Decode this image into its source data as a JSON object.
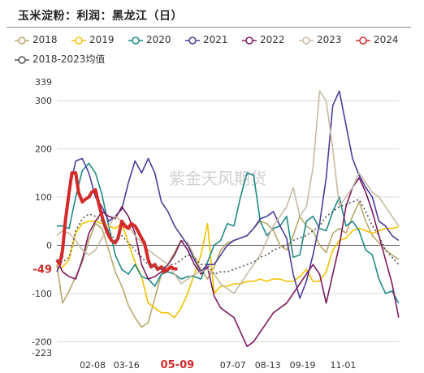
{
  "title": "玉米淀粉：利润：黑龙江（日）",
  "watermark": "紫金天风期货",
  "colors": {
    "2018": "#b9a86a",
    "2019": "#f2c200",
    "2020": "#1e8a86",
    "2021": "#4b3d9a",
    "2022": "#7b1a5e",
    "2023": "#c8bba2",
    "2024": "#d42a2a",
    "2018-2023均值": "#555555"
  },
  "chart_data": {
    "type": "line",
    "title": "玉米淀粉：利润：黑龙江（日）",
    "xlabel": "",
    "ylabel": "",
    "ylim": [
      -223,
      339
    ],
    "xlim": [
      1,
      365
    ],
    "y_ticks": [
      339,
      300,
      200,
      100,
      0,
      -100,
      -200,
      -223
    ],
    "x_ticks": [
      {
        "label": "02-08",
        "day": 39
      },
      {
        "label": "03-16",
        "day": 75
      },
      {
        "label": "05-09",
        "day": 129
      },
      {
        "label": "07-07",
        "day": 188
      },
      {
        "label": "08-13",
        "day": 225
      },
      {
        "label": "09-19",
        "day": 262
      },
      {
        "label": "11-01",
        "day": 305
      }
    ],
    "highlight_x_label": "05-09",
    "last_value_label": "-49",
    "legend_position": "top",
    "grid": true,
    "series": [
      {
        "name": "2018",
        "x": [
          1,
          7,
          14,
          21,
          28,
          35,
          42,
          49,
          56,
          63,
          70,
          77,
          84,
          91,
          98,
          105,
          112,
          119,
          126,
          133,
          140,
          147,
          154,
          161,
          168,
          175,
          182,
          189,
          196,
          203,
          210,
          217,
          224,
          231,
          238,
          245,
          252,
          259,
          266,
          273,
          280,
          287,
          294,
          301,
          308,
          315,
          322,
          329,
          336,
          343,
          350,
          357,
          364
        ],
        "y": [
          -40,
          -120,
          -95,
          -65,
          -35,
          10,
          45,
          35,
          -10,
          -55,
          -85,
          -125,
          -150,
          -170,
          -160,
          -110,
          -60,
          -40,
          -15,
          10,
          5,
          -25,
          -50,
          -70,
          -45,
          -10,
          5,
          10,
          15,
          20,
          35,
          50,
          45,
          30,
          0,
          -10,
          20,
          60,
          40,
          30,
          0,
          -15,
          25,
          35,
          25,
          60,
          90,
          50,
          20,
          5,
          -10,
          -20,
          -30
        ]
      },
      {
        "name": "2019",
        "x": [
          1,
          7,
          14,
          21,
          28,
          35,
          42,
          49,
          56,
          63,
          70,
          77,
          84,
          91,
          98,
          105,
          112,
          119,
          126,
          133,
          140,
          147,
          154,
          161,
          168,
          175,
          182,
          189,
          196,
          203,
          210,
          217,
          224,
          231,
          238,
          245,
          252,
          259,
          266,
          273,
          280,
          287,
          294,
          301,
          308,
          315,
          322,
          329,
          336,
          343,
          350,
          357,
          364
        ],
        "y": [
          -50,
          -45,
          -30,
          25,
          45,
          50,
          50,
          45,
          40,
          35,
          45,
          5,
          -35,
          -65,
          -120,
          -130,
          -140,
          -140,
          -150,
          -130,
          -100,
          -60,
          -20,
          45,
          -100,
          -85,
          -85,
          -80,
          -80,
          -75,
          -75,
          -70,
          -75,
          -70,
          -70,
          -75,
          -75,
          -65,
          -50,
          -75,
          -75,
          -55,
          -10,
          10,
          15,
          30,
          35,
          30,
          25,
          30,
          35,
          35,
          38
        ]
      },
      {
        "name": "2020",
        "x": [
          1,
          7,
          14,
          21,
          28,
          35,
          42,
          49,
          56,
          63,
          70,
          77,
          84,
          91,
          98,
          105,
          112,
          119,
          126,
          133,
          140,
          147,
          154,
          161,
          168,
          175,
          182,
          189,
          196,
          203,
          210,
          217,
          224,
          231,
          238,
          245,
          252,
          259,
          266,
          273,
          280,
          287,
          294,
          301,
          308,
          315,
          322,
          329,
          336,
          343,
          350,
          357,
          364
        ],
        "y": [
          40,
          40,
          35,
          100,
          155,
          170,
          150,
          105,
          40,
          -20,
          -50,
          -60,
          -40,
          -65,
          -70,
          -85,
          -60,
          -55,
          -60,
          -70,
          -65,
          -65,
          -70,
          -35,
          0,
          10,
          45,
          40,
          100,
          150,
          145,
          50,
          20,
          35,
          40,
          60,
          -25,
          -20,
          50,
          60,
          35,
          30,
          70,
          100,
          40,
          50,
          30,
          -10,
          -20,
          -70,
          -100,
          -95,
          -120
        ]
      },
      {
        "name": "2021",
        "x": [
          1,
          7,
          14,
          21,
          28,
          35,
          42,
          49,
          56,
          63,
          70,
          77,
          84,
          91,
          98,
          105,
          112,
          119,
          126,
          133,
          140,
          147,
          154,
          161,
          168,
          175,
          182,
          189,
          196,
          203,
          210,
          217,
          224,
          231,
          238,
          245,
          252,
          259,
          266,
          273,
          280,
          287,
          294,
          301,
          308,
          315,
          322,
          329,
          336,
          343,
          350,
          357,
          364
        ],
        "y": [
          -55,
          -25,
          110,
          175,
          180,
          150,
          100,
          80,
          50,
          60,
          75,
          130,
          175,
          150,
          180,
          150,
          90,
          70,
          40,
          20,
          0,
          -30,
          -55,
          -40,
          -40,
          -20,
          0,
          10,
          15,
          20,
          35,
          55,
          60,
          70,
          40,
          15,
          -60,
          -110,
          -75,
          -20,
          45,
          140,
          290,
          320,
          250,
          180,
          145,
          120,
          100,
          50,
          40,
          20,
          10
        ]
      },
      {
        "name": "2022",
        "x": [
          1,
          7,
          14,
          21,
          28,
          35,
          42,
          49,
          56,
          63,
          70,
          77,
          84,
          91,
          98,
          105,
          112,
          119,
          126,
          133,
          140,
          147,
          154,
          161,
          168,
          175,
          182,
          189,
          196,
          203,
          210,
          217,
          224,
          231,
          238,
          245,
          252,
          259,
          266,
          273,
          280,
          287,
          294,
          301,
          308,
          315,
          322,
          329,
          336,
          343,
          350,
          357,
          364
        ],
        "y": [
          -30,
          -55,
          -65,
          -70,
          -30,
          25,
          50,
          70,
          60,
          55,
          80,
          60,
          25,
          -40,
          -70,
          -65,
          -55,
          -40,
          -20,
          10,
          -10,
          -40,
          -60,
          -45,
          -105,
          -130,
          -140,
          -150,
          -180,
          -210,
          -200,
          -180,
          -160,
          -140,
          -130,
          -120,
          -100,
          -80,
          -60,
          -40,
          -60,
          -120,
          -60,
          0,
          80,
          120,
          140,
          110,
          70,
          20,
          -30,
          -80,
          -150
        ]
      },
      {
        "name": "2023",
        "x": [
          1,
          7,
          14,
          21,
          28,
          35,
          42,
          49,
          56,
          63,
          70,
          77,
          84,
          91,
          98,
          105,
          112,
          119,
          126,
          133,
          140,
          147,
          154,
          161,
          168,
          175,
          182,
          189,
          196,
          203,
          210,
          217,
          224,
          231,
          238,
          245,
          252,
          259,
          266,
          273,
          280,
          287,
          294,
          301,
          308,
          315,
          322,
          329,
          336,
          343,
          350,
          357,
          364
        ],
        "y": [
          20,
          30,
          25,
          10,
          -10,
          -20,
          -10,
          15,
          40,
          60,
          50,
          40,
          20,
          5,
          -10,
          -20,
          -30,
          -40,
          -60,
          -80,
          -70,
          -60,
          -55,
          -50,
          -60,
          -80,
          -90,
          -100,
          -80,
          -60,
          -40,
          -20,
          10,
          40,
          60,
          80,
          120,
          60,
          80,
          160,
          320,
          300,
          200,
          80,
          100,
          120,
          150,
          130,
          110,
          100,
          80,
          60,
          40
        ]
      },
      {
        "name": "2024",
        "x": [
          1,
          4,
          7,
          10,
          14,
          17,
          21,
          24,
          28,
          31,
          35,
          38,
          42,
          45,
          49,
          52,
          56,
          59,
          63,
          66,
          70,
          73,
          77,
          80,
          84,
          87,
          91,
          94,
          98,
          101,
          105,
          108,
          112,
          115,
          119,
          122,
          126,
          129
        ],
        "y": [
          -30,
          -40,
          -10,
          50,
          110,
          150,
          150,
          110,
          90,
          95,
          100,
          110,
          115,
          90,
          60,
          40,
          20,
          10,
          5,
          15,
          50,
          40,
          35,
          45,
          40,
          30,
          15,
          5,
          -30,
          -45,
          -40,
          -50,
          -45,
          -55,
          -50,
          -45,
          -49,
          -49
        ]
      },
      {
        "name": "2018-2023均值",
        "x": [
          1,
          7,
          14,
          21,
          28,
          35,
          42,
          49,
          56,
          63,
          70,
          77,
          84,
          91,
          98,
          105,
          112,
          119,
          126,
          133,
          140,
          147,
          154,
          161,
          168,
          175,
          182,
          189,
          196,
          203,
          210,
          217,
          224,
          231,
          238,
          245,
          252,
          259,
          266,
          273,
          280,
          287,
          294,
          301,
          308,
          315,
          322,
          329,
          336,
          343,
          350,
          357,
          364
        ],
        "y": [
          -30,
          -35,
          -25,
          30,
          55,
          65,
          60,
          50,
          30,
          10,
          20,
          5,
          -10,
          -25,
          -40,
          -45,
          -50,
          -40,
          -40,
          -30,
          -20,
          -25,
          -40,
          -40,
          -60,
          -55,
          -55,
          -50,
          -45,
          -40,
          -35,
          -25,
          -20,
          -10,
          -5,
          0,
          10,
          15,
          20,
          30,
          40,
          60,
          70,
          80,
          85,
          90,
          95,
          70,
          40,
          20,
          -10,
          -25,
          -40
        ]
      }
    ]
  }
}
